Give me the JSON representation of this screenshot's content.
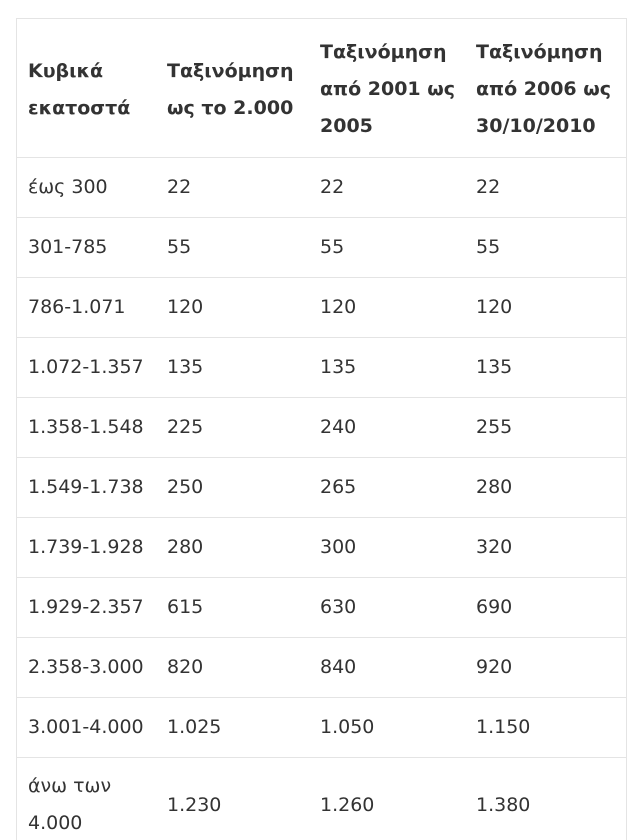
{
  "table": {
    "headers": [
      "Κυβικά εκατοστά",
      "Ταξινόμηση ως το 2.000",
      "Ταξινόμηση από 2001 ως 2005",
      "Ταξινόμηση από 2006 ως 30/10/2010"
    ],
    "rows": [
      [
        "έως 300",
        "22",
        "22",
        "22"
      ],
      [
        "301-785",
        "55",
        "55",
        "55"
      ],
      [
        "786-1.071",
        "120",
        "120",
        "120"
      ],
      [
        "1.072-1.357",
        "135",
        "135",
        "135"
      ],
      [
        "1.358-1.548",
        "225",
        "240",
        "255"
      ],
      [
        "1.549-1.738",
        "250",
        "265",
        "280"
      ],
      [
        "1.739-1.928",
        "280",
        "300",
        "320"
      ],
      [
        "1.929-2.357",
        "615",
        "630",
        "690"
      ],
      [
        "2.358-3.000",
        "820",
        "840",
        "920"
      ],
      [
        "3.001-4.000",
        "1.025",
        "1.050",
        "1.150"
      ],
      [
        "άνω των 4.000",
        "1.230",
        "1.260",
        "1.380"
      ]
    ]
  }
}
